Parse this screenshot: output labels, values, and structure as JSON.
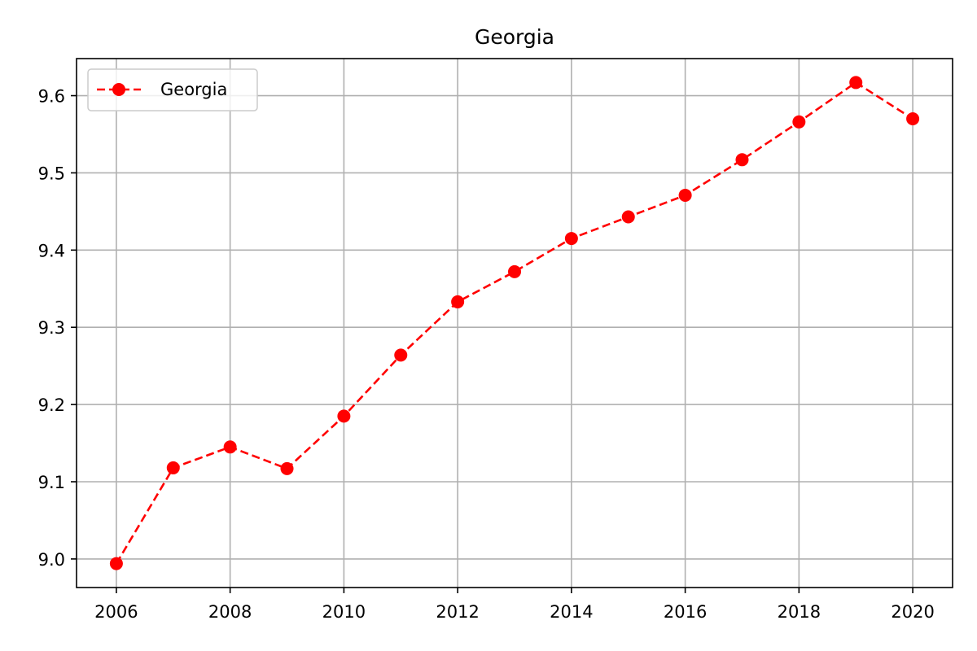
{
  "chart_data": {
    "type": "line",
    "title": "Georgia",
    "xlabel": "",
    "ylabel": "",
    "x": [
      2006,
      2007,
      2008,
      2009,
      2010,
      2011,
      2012,
      2013,
      2014,
      2015,
      2016,
      2017,
      2018,
      2019,
      2020
    ],
    "series": [
      {
        "name": "Georgia",
        "values": [
          8.994,
          9.118,
          9.145,
          9.117,
          9.185,
          9.264,
          9.333,
          9.372,
          9.415,
          9.443,
          9.471,
          9.517,
          9.566,
          9.617,
          9.57
        ],
        "color": "#ff0000",
        "line_style": "dashed",
        "marker": "circle"
      }
    ],
    "xlim": [
      2005.3,
      2020.7
    ],
    "ylim": [
      8.963,
      9.648
    ],
    "xticks": [
      2006,
      2008,
      2010,
      2012,
      2014,
      2016,
      2018,
      2020
    ],
    "yticks": [
      9.0,
      9.1,
      9.2,
      9.3,
      9.4,
      9.5,
      9.6
    ],
    "ytick_labels": [
      "9.0",
      "9.1",
      "9.2",
      "9.3",
      "9.4",
      "9.5",
      "9.6"
    ],
    "grid": true,
    "legend_position": "upper-left",
    "colors": {
      "grid": "#b0b0b0",
      "axes": "#000000",
      "background": "#ffffff"
    }
  }
}
